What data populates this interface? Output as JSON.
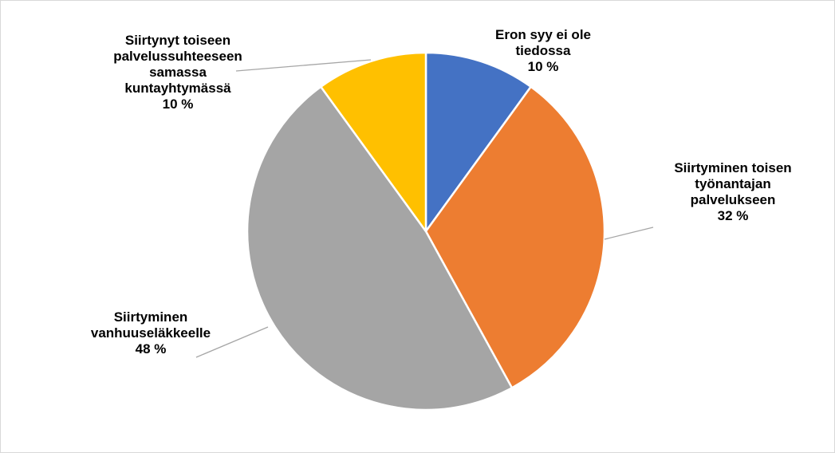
{
  "chart_data": {
    "type": "pie",
    "title": "",
    "start_angle_deg": 0,
    "direction": "clockwise",
    "show_leader_lines": true,
    "slices": [
      {
        "label_lines": [
          "Eron syy ei ole",
          "tiedossa"
        ],
        "value_label": "10 %",
        "value": 10,
        "color": "#4472C4"
      },
      {
        "label_lines": [
          "Siirtyminen toisen",
          "työnantajan",
          "palvelukseen"
        ],
        "value_label": "32 %",
        "value": 32,
        "color": "#ED7D31"
      },
      {
        "label_lines": [
          "Siirtyminen",
          "vanhuuseläkkeelle"
        ],
        "value_label": "48 %",
        "value": 48,
        "color": "#A5A5A5"
      },
      {
        "label_lines": [
          "Siirtynyt toiseen",
          "palvelussuhteeseen",
          "samassa",
          "kuntayhtymässä"
        ],
        "value_label": "10 %",
        "value": 10,
        "color": "#FFC000"
      }
    ],
    "leader_line_color": "#A6A6A6",
    "slice_border_color": "#FFFFFF"
  }
}
